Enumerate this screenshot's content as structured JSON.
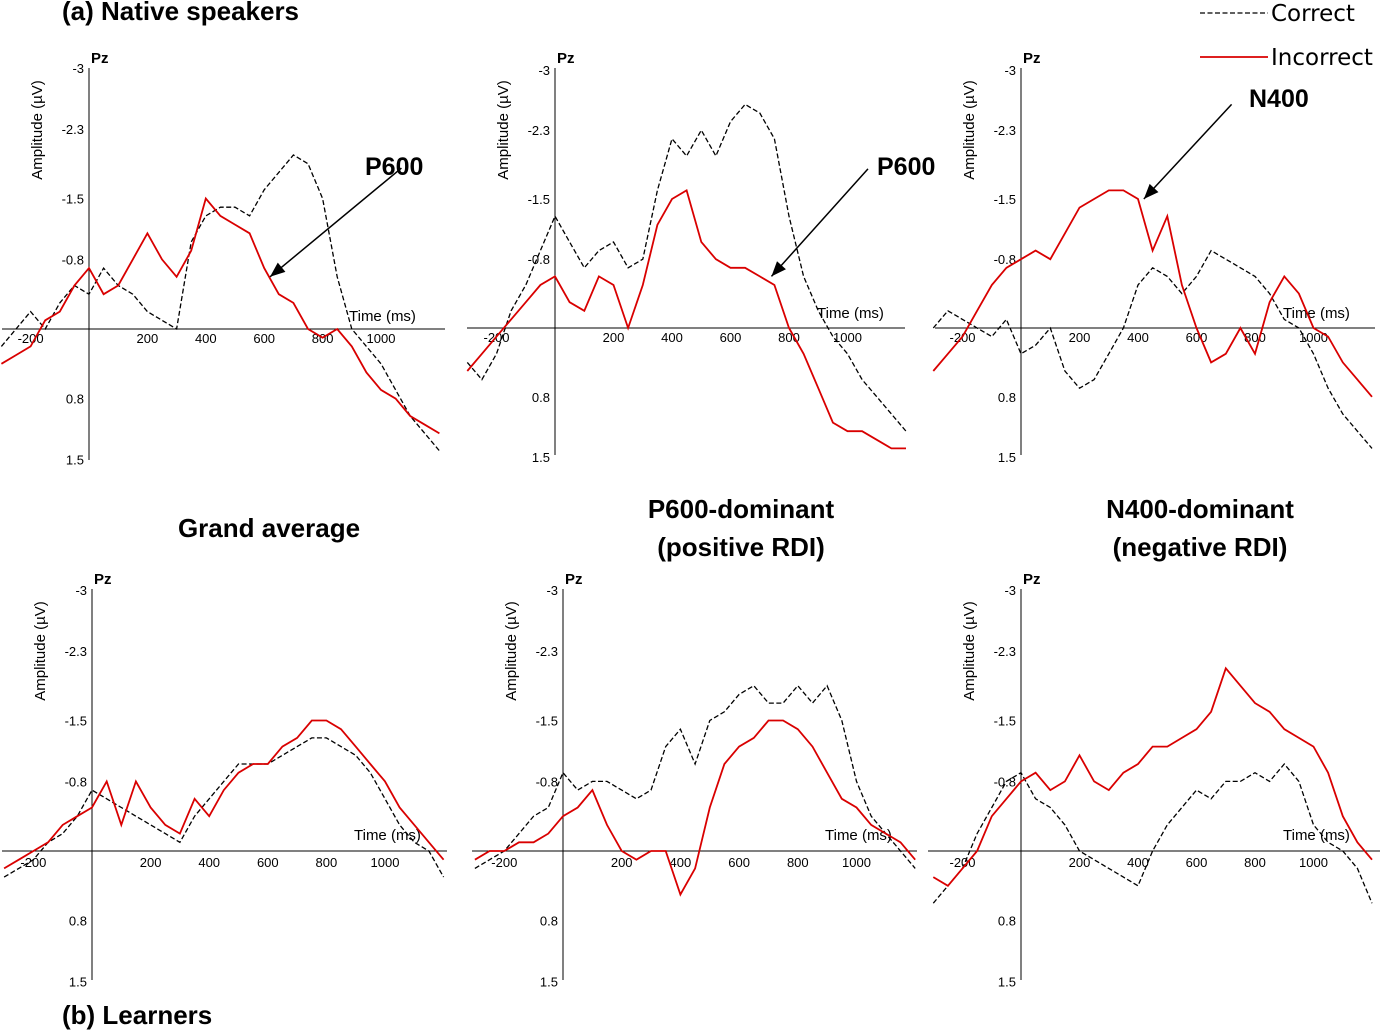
{
  "sections": {
    "top": "(a) Native speakers",
    "bottom": "(b) Learners"
  },
  "column_titles": [
    [
      "Grand average"
    ],
    [
      "P600-dominant",
      "(positive RDI)"
    ],
    [
      "N400-dominant",
      "(negative RDI)"
    ]
  ],
  "legend": [
    {
      "label": "Correct",
      "style": "dashed",
      "color": "#000000"
    },
    {
      "label": "Incorrect",
      "style": "solid",
      "color": "#d90000"
    }
  ],
  "chart_data": [
    {
      "type": "line",
      "group": "Native speakers",
      "column": "Grand average",
      "electrode": "Pz",
      "xlabel": "Time (ms)",
      "ylabel": "Amplitude (µV)",
      "ylim": [
        1.5,
        -3
      ],
      "xlim": [
        -300,
        1200
      ],
      "yticks": [
        "-3",
        "-2.3",
        "-1.5",
        "-0.8",
        "0.8",
        "1.5"
      ],
      "xticks": [
        "-200",
        "200",
        "400",
        "600",
        "800",
        "1000"
      ],
      "annotation": {
        "label": "P600",
        "from": [
          1070,
          -1.85
        ],
        "to": [
          620,
          -0.6
        ]
      },
      "series": [
        {
          "name": "Correct",
          "x": [
            -300,
            -250,
            -200,
            -150,
            -100,
            -50,
            0,
            50,
            100,
            150,
            200,
            250,
            300,
            350,
            400,
            450,
            500,
            550,
            600,
            650,
            700,
            750,
            800,
            850,
            900,
            950,
            1000,
            1050,
            1100,
            1150,
            1200
          ],
          "y": [
            0.2,
            0.0,
            -0.2,
            0.0,
            -0.3,
            -0.5,
            -0.4,
            -0.7,
            -0.5,
            -0.4,
            -0.2,
            -0.1,
            0.0,
            -1.0,
            -1.3,
            -1.4,
            -1.4,
            -1.3,
            -1.6,
            -1.8,
            -2.0,
            -1.9,
            -1.5,
            -0.6,
            0.0,
            0.2,
            0.4,
            0.7,
            1.0,
            1.2,
            1.4
          ]
        },
        {
          "name": "Incorrect",
          "x": [
            -300,
            -250,
            -200,
            -150,
            -100,
            -50,
            0,
            50,
            100,
            150,
            200,
            250,
            300,
            350,
            400,
            450,
            500,
            550,
            600,
            650,
            700,
            750,
            800,
            850,
            900,
            950,
            1000,
            1050,
            1100,
            1150,
            1200
          ],
          "y": [
            0.4,
            0.3,
            0.2,
            -0.1,
            -0.2,
            -0.5,
            -0.7,
            -0.4,
            -0.5,
            -0.8,
            -1.1,
            -0.8,
            -0.6,
            -0.9,
            -1.5,
            -1.3,
            -1.2,
            -1.1,
            -0.7,
            -0.4,
            -0.3,
            0.0,
            0.1,
            0.0,
            0.2,
            0.5,
            0.7,
            0.8,
            1.0,
            1.1,
            1.2
          ]
        }
      ]
    },
    {
      "type": "line",
      "group": "Native speakers",
      "column": "P600-dominant (positive RDI)",
      "electrode": "Pz",
      "xlabel": "Time (ms)",
      "ylabel": "Amplitude (µV)",
      "ylim": [
        1.5,
        -3
      ],
      "xlim": [
        -300,
        1200
      ],
      "yticks": [
        "-3",
        "-2.3",
        "-1.5",
        "-0.8",
        "0.8",
        "1.5"
      ],
      "xticks": [
        "-200",
        "200",
        "400",
        "600",
        "800",
        "1000"
      ],
      "annotation": {
        "label": "P600",
        "from": [
          1070,
          -1.85
        ],
        "to": [
          740,
          -0.6
        ]
      },
      "series": [
        {
          "name": "Correct",
          "x": [
            -300,
            -250,
            -200,
            -150,
            -100,
            -50,
            0,
            50,
            100,
            150,
            200,
            250,
            300,
            350,
            400,
            450,
            500,
            550,
            600,
            650,
            700,
            750,
            800,
            850,
            900,
            950,
            1000,
            1050,
            1100,
            1150,
            1200
          ],
          "y": [
            0.4,
            0.6,
            0.3,
            -0.2,
            -0.5,
            -0.9,
            -1.3,
            -1.0,
            -0.7,
            -0.9,
            -1.0,
            -0.7,
            -0.8,
            -1.6,
            -2.2,
            -2.0,
            -2.3,
            -2.0,
            -2.4,
            -2.6,
            -2.5,
            -2.2,
            -1.3,
            -0.6,
            -0.2,
            0.1,
            0.3,
            0.6,
            0.8,
            1.0,
            1.2
          ]
        },
        {
          "name": "Incorrect",
          "x": [
            -300,
            -250,
            -200,
            -150,
            -100,
            -50,
            0,
            50,
            100,
            150,
            200,
            250,
            300,
            350,
            400,
            450,
            500,
            550,
            600,
            650,
            700,
            750,
            800,
            850,
            900,
            950,
            1000,
            1050,
            1100,
            1150,
            1200
          ],
          "y": [
            0.5,
            0.3,
            0.1,
            -0.1,
            -0.3,
            -0.5,
            -0.6,
            -0.3,
            -0.2,
            -0.6,
            -0.5,
            0.0,
            -0.5,
            -1.2,
            -1.5,
            -1.6,
            -1.0,
            -0.8,
            -0.7,
            -0.7,
            -0.6,
            -0.5,
            0.0,
            0.3,
            0.7,
            1.1,
            1.2,
            1.2,
            1.3,
            1.4,
            1.4
          ]
        }
      ]
    },
    {
      "type": "line",
      "group": "Native speakers",
      "column": "N400-dominant (negative RDI)",
      "electrode": "Pz",
      "xlabel": "Time (ms)",
      "ylabel": "Amplitude (µV)",
      "ylim": [
        1.5,
        -3
      ],
      "xlim": [
        -300,
        1200
      ],
      "yticks": [
        "-3",
        "-2.3",
        "-1.5",
        "-0.8",
        "0.8",
        "1.5"
      ],
      "xticks": [
        "-200",
        "200",
        "400",
        "600",
        "800",
        "1000"
      ],
      "annotation": {
        "label": "N400",
        "from": [
          720,
          -2.6
        ],
        "to": [
          420,
          -1.5
        ]
      },
      "series": [
        {
          "name": "Correct",
          "x": [
            -300,
            -250,
            -200,
            -150,
            -100,
            -50,
            0,
            50,
            100,
            150,
            200,
            250,
            300,
            350,
            400,
            450,
            500,
            550,
            600,
            650,
            700,
            750,
            800,
            850,
            900,
            950,
            1000,
            1050,
            1100,
            1150,
            1200
          ],
          "y": [
            0.0,
            -0.2,
            -0.1,
            0.0,
            0.1,
            -0.1,
            0.3,
            0.2,
            0.0,
            0.5,
            0.7,
            0.6,
            0.3,
            0.0,
            -0.5,
            -0.7,
            -0.6,
            -0.4,
            -0.6,
            -0.9,
            -0.8,
            -0.7,
            -0.6,
            -0.4,
            -0.1,
            0.0,
            0.3,
            0.7,
            1.0,
            1.2,
            1.4
          ]
        },
        {
          "name": "Incorrect",
          "x": [
            -300,
            -250,
            -200,
            -150,
            -100,
            -50,
            0,
            50,
            100,
            150,
            200,
            250,
            300,
            350,
            400,
            450,
            500,
            550,
            600,
            650,
            700,
            750,
            800,
            850,
            900,
            950,
            1000,
            1050,
            1100,
            1150,
            1200
          ],
          "y": [
            0.5,
            0.3,
            0.1,
            -0.2,
            -0.5,
            -0.7,
            -0.8,
            -0.9,
            -0.8,
            -1.1,
            -1.4,
            -1.5,
            -1.6,
            -1.6,
            -1.5,
            -0.9,
            -1.3,
            -0.5,
            0.0,
            0.4,
            0.3,
            0.0,
            0.3,
            -0.3,
            -0.6,
            -0.4,
            0.0,
            0.1,
            0.4,
            0.6,
            0.8
          ]
        }
      ]
    },
    {
      "type": "line",
      "group": "Learners",
      "column": "Grand average",
      "electrode": "Pz",
      "xlabel": "Time (ms)",
      "ylabel": "Amplitude (µV)",
      "ylim": [
        1.5,
        -3
      ],
      "xlim": [
        -300,
        1200
      ],
      "yticks": [
        "-3",
        "-2.3",
        "-1.5",
        "-0.8",
        "0.8",
        "1.5"
      ],
      "xticks": [
        "-200",
        "200",
        "400",
        "600",
        "800",
        "1000"
      ],
      "series": [
        {
          "name": "Correct",
          "x": [
            -300,
            -250,
            -200,
            -150,
            -100,
            -50,
            0,
            50,
            100,
            150,
            200,
            250,
            300,
            350,
            400,
            450,
            500,
            550,
            600,
            650,
            700,
            750,
            800,
            850,
            900,
            950,
            1000,
            1050,
            1100,
            1150,
            1200
          ],
          "y": [
            0.3,
            0.2,
            0.1,
            -0.1,
            -0.2,
            -0.4,
            -0.7,
            -0.6,
            -0.5,
            -0.4,
            -0.3,
            -0.2,
            -0.1,
            -0.4,
            -0.6,
            -0.8,
            -1.0,
            -1.0,
            -1.0,
            -1.1,
            -1.2,
            -1.3,
            -1.3,
            -1.2,
            -1.1,
            -0.9,
            -0.6,
            -0.3,
            -0.1,
            0.0,
            0.3
          ]
        },
        {
          "name": "Incorrect",
          "x": [
            -300,
            -250,
            -200,
            -150,
            -100,
            -50,
            0,
            50,
            100,
            150,
            200,
            250,
            300,
            350,
            400,
            450,
            500,
            550,
            600,
            650,
            700,
            750,
            800,
            850,
            900,
            950,
            1000,
            1050,
            1100,
            1150,
            1200
          ],
          "y": [
            0.2,
            0.1,
            0.0,
            -0.1,
            -0.3,
            -0.4,
            -0.5,
            -0.8,
            -0.3,
            -0.8,
            -0.5,
            -0.3,
            -0.2,
            -0.6,
            -0.4,
            -0.7,
            -0.9,
            -1.0,
            -1.0,
            -1.2,
            -1.3,
            -1.5,
            -1.5,
            -1.4,
            -1.2,
            -1.0,
            -0.8,
            -0.5,
            -0.3,
            -0.1,
            0.1
          ]
        }
      ]
    },
    {
      "type": "line",
      "group": "Learners",
      "column": "P600-dominant (positive RDI)",
      "electrode": "Pz",
      "xlabel": "Time (ms)",
      "ylabel": "Amplitude (µV)",
      "ylim": [
        1.5,
        -3
      ],
      "xlim": [
        -300,
        1200
      ],
      "yticks": [
        "-3",
        "-2.3",
        "-1.5",
        "-0.8",
        "0.8",
        "1.5"
      ],
      "xticks": [
        "-200",
        "200",
        "400",
        "600",
        "800",
        "1000"
      ],
      "series": [
        {
          "name": "Correct",
          "x": [
            -300,
            -250,
            -200,
            -150,
            -100,
            -50,
            0,
            50,
            100,
            150,
            200,
            250,
            300,
            350,
            400,
            450,
            500,
            550,
            600,
            650,
            700,
            750,
            800,
            850,
            900,
            950,
            1000,
            1050,
            1100,
            1150,
            1200
          ],
          "y": [
            0.2,
            0.1,
            0.0,
            -0.2,
            -0.4,
            -0.5,
            -0.9,
            -0.7,
            -0.8,
            -0.8,
            -0.7,
            -0.6,
            -0.7,
            -1.2,
            -1.4,
            -1.0,
            -1.5,
            -1.6,
            -1.8,
            -1.9,
            -1.7,
            -1.7,
            -1.9,
            -1.7,
            -1.9,
            -1.5,
            -0.8,
            -0.4,
            -0.2,
            0.0,
            0.2
          ]
        },
        {
          "name": "Incorrect",
          "x": [
            -300,
            -250,
            -200,
            -150,
            -100,
            -50,
            0,
            50,
            100,
            150,
            200,
            250,
            300,
            350,
            400,
            450,
            500,
            550,
            600,
            650,
            700,
            750,
            800,
            850,
            900,
            950,
            1000,
            1050,
            1100,
            1150,
            1200
          ],
          "y": [
            0.1,
            0.0,
            0.0,
            -0.1,
            -0.1,
            -0.2,
            -0.4,
            -0.5,
            -0.7,
            -0.3,
            0.0,
            0.1,
            0.0,
            0.0,
            0.5,
            0.2,
            -0.5,
            -1.0,
            -1.2,
            -1.3,
            -1.5,
            -1.5,
            -1.4,
            -1.2,
            -0.9,
            -0.6,
            -0.5,
            -0.3,
            -0.2,
            -0.1,
            0.1
          ]
        }
      ]
    },
    {
      "type": "line",
      "group": "Learners",
      "column": "N400-dominant (negative RDI)",
      "electrode": "Pz",
      "xlabel": "Time (ms)",
      "ylabel": "Amplitude (µV)",
      "ylim": [
        1.5,
        -3
      ],
      "xlim": [
        -300,
        1200
      ],
      "yticks": [
        "-3",
        "-2.3",
        "-1.5",
        "-0.8",
        "0.8",
        "1.5"
      ],
      "xticks": [
        "-200",
        "200",
        "400",
        "600",
        "800",
        "1000"
      ],
      "series": [
        {
          "name": "Correct",
          "x": [
            -300,
            -250,
            -200,
            -150,
            -100,
            -50,
            0,
            50,
            100,
            150,
            200,
            250,
            300,
            350,
            400,
            450,
            500,
            550,
            600,
            650,
            700,
            750,
            800,
            850,
            900,
            950,
            1000,
            1050,
            1100,
            1150,
            1200
          ],
          "y": [
            0.6,
            0.4,
            0.2,
            -0.2,
            -0.5,
            -0.8,
            -0.9,
            -0.6,
            -0.5,
            -0.3,
            0.0,
            0.1,
            0.2,
            0.3,
            0.4,
            0.0,
            -0.3,
            -0.5,
            -0.7,
            -0.6,
            -0.8,
            -0.8,
            -0.9,
            -0.8,
            -1.0,
            -0.8,
            -0.3,
            -0.1,
            0.0,
            0.2,
            0.6
          ]
        },
        {
          "name": "Incorrect",
          "x": [
            -300,
            -250,
            -200,
            -150,
            -100,
            -50,
            0,
            50,
            100,
            150,
            200,
            250,
            300,
            350,
            400,
            450,
            500,
            550,
            600,
            650,
            700,
            750,
            800,
            850,
            900,
            950,
            1000,
            1050,
            1100,
            1150,
            1200
          ],
          "y": [
            0.3,
            0.4,
            0.2,
            0.0,
            -0.4,
            -0.6,
            -0.8,
            -0.9,
            -0.7,
            -0.8,
            -1.1,
            -0.8,
            -0.7,
            -0.9,
            -1.0,
            -1.2,
            -1.2,
            -1.3,
            -1.4,
            -1.6,
            -2.1,
            -1.9,
            -1.7,
            -1.6,
            -1.4,
            -1.3,
            -1.2,
            -0.9,
            -0.4,
            -0.1,
            0.1
          ]
        }
      ]
    }
  ]
}
